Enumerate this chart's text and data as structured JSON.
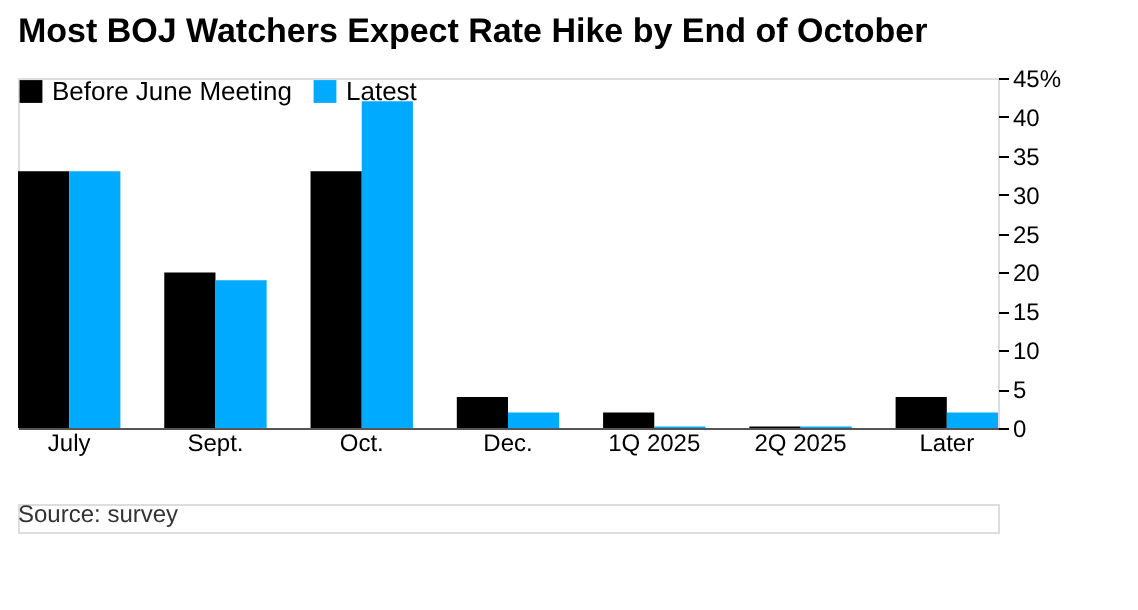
{
  "chart_data": {
    "type": "bar",
    "title": "Most BOJ Watchers Expect Rate Hike by End of October",
    "categories": [
      "July",
      "Sept.",
      "Oct.",
      "Dec.",
      "1Q 2025",
      "2Q 2025",
      "Later"
    ],
    "series": [
      {
        "name": "Before June Meeting",
        "color": "#000000",
        "values": [
          33,
          20,
          33,
          4,
          2,
          0.2,
          4
        ]
      },
      {
        "name": "Latest",
        "color": "#00aaff",
        "values": [
          33,
          19,
          42,
          2,
          0.2,
          0.2,
          2
        ]
      }
    ],
    "ylim": [
      0,
      45
    ],
    "yticks": [
      0,
      5,
      10,
      15,
      20,
      25,
      30,
      35,
      40,
      {
        "value": 45,
        "label": "45%"
      }
    ],
    "grid": false,
    "legend": "top left",
    "annotations": [
      "Source: survey"
    ]
  }
}
